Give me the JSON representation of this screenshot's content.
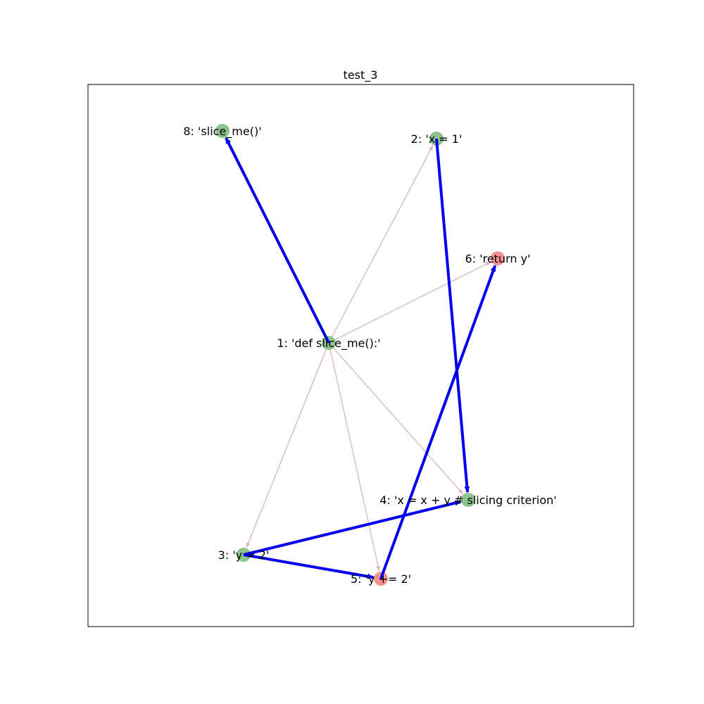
{
  "title": "test_3",
  "colors": {
    "green_node": "#8cc38c",
    "red_node": "#f59090",
    "blue_edge": "#0000ee",
    "faint_edge": "#ddb4b4"
  },
  "nodes": [
    {
      "id": "1",
      "label": "1: 'def slice_me():'",
      "color": "green"
    },
    {
      "id": "2",
      "label": "2: 'x = 1'",
      "color": "green"
    },
    {
      "id": "3",
      "label": "3: 'y = 2'",
      "color": "green"
    },
    {
      "id": "4",
      "label": "4: 'x = x + y # slicing criterion'",
      "color": "green"
    },
    {
      "id": "5",
      "label": "5: 'y += 2'",
      "color": "red"
    },
    {
      "id": "6",
      "label": "6: 'return y'",
      "color": "red"
    },
    {
      "id": "8",
      "label": "8: 'slice_me()'",
      "color": "green"
    }
  ],
  "edges": [
    {
      "from": "1",
      "to": "2",
      "style": "faint"
    },
    {
      "from": "1",
      "to": "6",
      "style": "faint"
    },
    {
      "from": "1",
      "to": "3",
      "style": "faint"
    },
    {
      "from": "1",
      "to": "5",
      "style": "faint"
    },
    {
      "from": "1",
      "to": "4",
      "style": "faint"
    },
    {
      "from": "1",
      "to": "8",
      "style": "bold"
    },
    {
      "from": "2",
      "to": "4",
      "style": "bold"
    },
    {
      "from": "3",
      "to": "4",
      "style": "bold"
    },
    {
      "from": "3",
      "to": "5",
      "style": "bold"
    },
    {
      "from": "5",
      "to": "6",
      "style": "bold"
    }
  ]
}
